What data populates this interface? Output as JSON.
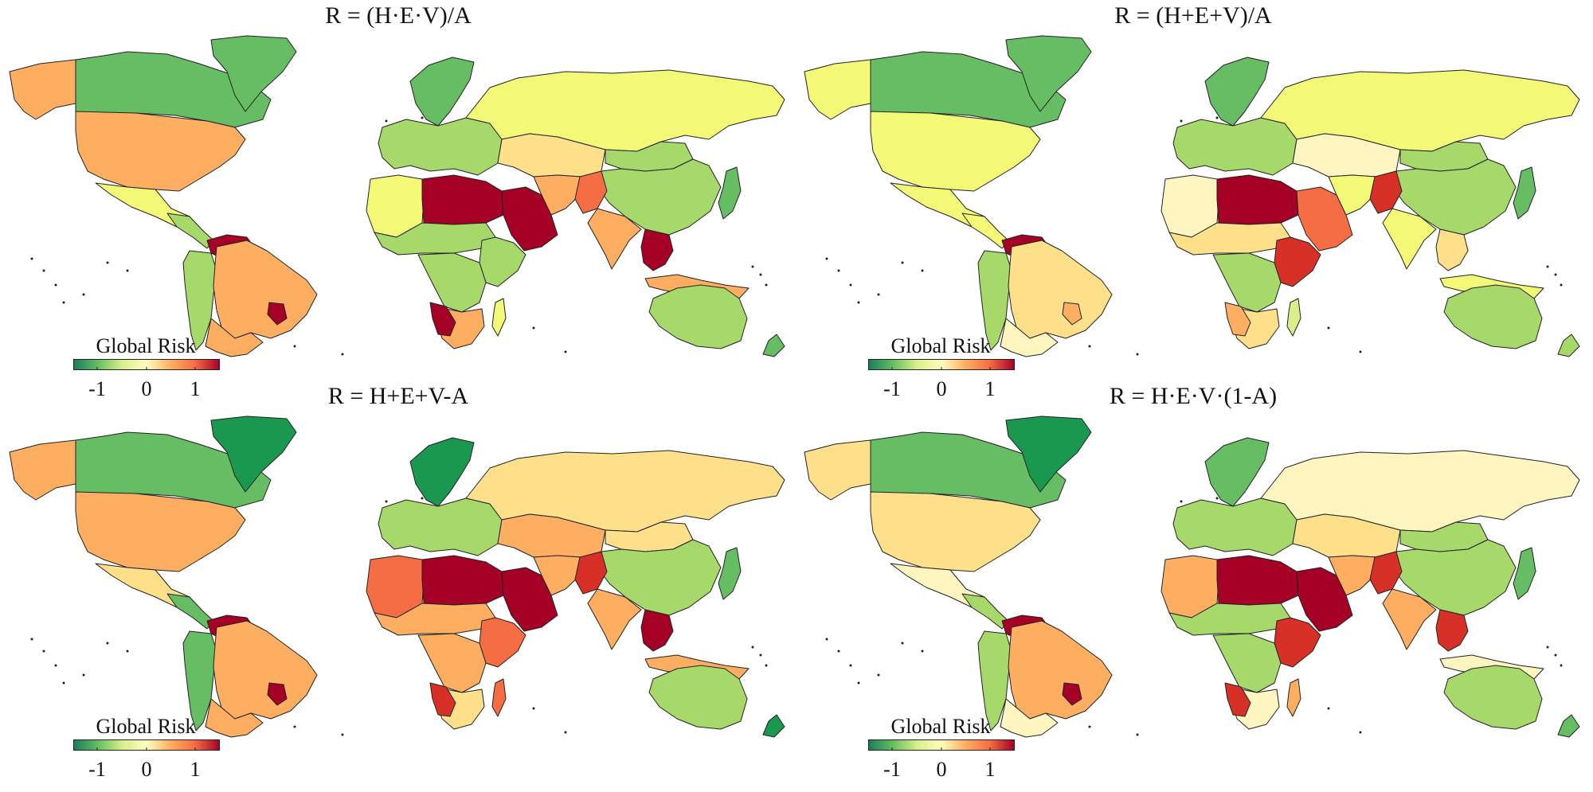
{
  "colors": {
    "dark_green": "#1a9850",
    "green": "#66bd63",
    "light_green": "#a6d96a",
    "yellow_green": "#d9ef8b",
    "yellow": "#f4f877",
    "cream": "#fee08b",
    "pale": "#fff5c0",
    "orange": "#fdae61",
    "dark_orange": "#f46d43",
    "red": "#d73027",
    "dark_red": "#a50026",
    "border": "#222222"
  },
  "colorbar": {
    "stops": [
      "#1a7d5a",
      "#66bd63",
      "#d9ef8b",
      "#fffcc0",
      "#fdae61",
      "#f46d43",
      "#a50026"
    ]
  },
  "panels": [
    {
      "title": "R = (H·E·V)/A",
      "legend_title": "Global Risk",
      "ticks": [
        "-1",
        "0",
        "1"
      ],
      "regions": {
        "canada": "green",
        "greenland": "green",
        "usa": "orange",
        "alaska": "orange",
        "mexico": "yellow",
        "central_america": "light_green",
        "venezuela": "dark_red",
        "south_america": "orange",
        "andes": "light_green",
        "argentina": "orange",
        "paraguay": "dark_red",
        "europe": "light_green",
        "scandinavia": "green",
        "russia": "yellow",
        "north_africa": "yellow",
        "libya_egypt": "dark_red",
        "sahel": "light_green",
        "east_africa": "light_green",
        "central_africa": "light_green",
        "southern_africa": "orange",
        "namibia": "dark_red",
        "madagascar": "yellow",
        "arabia": "dark_red",
        "iran": "orange",
        "central_asia": "cream",
        "india": "orange",
        "pakistan": "dark_orange",
        "china": "light_green",
        "mongolia": "light_green",
        "southeast_asia": "dark_red",
        "indonesia": "orange",
        "japan": "green",
        "australia": "light_green",
        "new_zealand": "green"
      }
    },
    {
      "title": "R = (H+E+V)/A",
      "legend_title": "Global Risk",
      "ticks": [
        "-1",
        "0",
        "1"
      ],
      "regions": {
        "canada": "green",
        "greenland": "green",
        "usa": "yellow",
        "alaska": "yellow",
        "mexico": "yellow",
        "central_america": "yellow",
        "venezuela": "dark_red",
        "south_america": "cream",
        "andes": "light_green",
        "argentina": "pale",
        "paraguay": "orange",
        "europe": "light_green",
        "scandinavia": "green",
        "russia": "yellow",
        "north_africa": "pale",
        "libya_egypt": "dark_red",
        "sahel": "cream",
        "east_africa": "red",
        "central_africa": "light_green",
        "southern_africa": "cream",
        "namibia": "orange",
        "madagascar": "yellow_green",
        "arabia": "dark_orange",
        "iran": "yellow",
        "central_asia": "pale",
        "india": "yellow",
        "pakistan": "red",
        "china": "light_green",
        "mongolia": "light_green",
        "southeast_asia": "cream",
        "indonesia": "yellow",
        "japan": "green",
        "australia": "light_green",
        "new_zealand": "light_green"
      }
    },
    {
      "title": "R = H+E+V-A",
      "legend_title": "Global Risk",
      "ticks": [
        "-1",
        "0",
        "1"
      ],
      "regions": {
        "canada": "green",
        "greenland": "dark_green",
        "usa": "orange",
        "alaska": "orange",
        "mexico": "cream",
        "central_america": "green",
        "venezuela": "dark_red",
        "south_america": "orange",
        "andes": "green",
        "argentina": "orange",
        "paraguay": "dark_red",
        "europe": "light_green",
        "scandinavia": "dark_green",
        "russia": "cream",
        "north_africa": "dark_orange",
        "libya_egypt": "dark_red",
        "sahel": "orange",
        "east_africa": "dark_orange",
        "central_africa": "orange",
        "southern_africa": "cream",
        "namibia": "red",
        "madagascar": "dark_orange",
        "arabia": "dark_red",
        "iran": "orange",
        "central_asia": "orange",
        "india": "orange",
        "pakistan": "red",
        "china": "light_green",
        "mongolia": "cream",
        "southeast_asia": "dark_red",
        "indonesia": "orange",
        "japan": "green",
        "australia": "light_green",
        "new_zealand": "dark_green"
      }
    },
    {
      "title": "R = H·E·V·(1-A)",
      "legend_title": "Global Risk",
      "ticks": [
        "-1",
        "0",
        "1"
      ],
      "regions": {
        "canada": "green",
        "greenland": "dark_green",
        "usa": "cream",
        "alaska": "cream",
        "mexico": "pale",
        "central_america": "light_green",
        "venezuela": "dark_red",
        "south_america": "orange",
        "andes": "light_green",
        "argentina": "pale",
        "paraguay": "dark_red",
        "europe": "light_green",
        "scandinavia": "green",
        "russia": "pale",
        "north_africa": "orange",
        "libya_egypt": "dark_red",
        "sahel": "light_green",
        "east_africa": "red",
        "central_africa": "light_green",
        "southern_africa": "pale",
        "namibia": "red",
        "madagascar": "orange",
        "arabia": "dark_red",
        "iran": "orange",
        "central_asia": "cream",
        "india": "orange",
        "pakistan": "red",
        "china": "light_green",
        "mongolia": "light_green",
        "southeast_asia": "red",
        "indonesia": "pale",
        "japan": "green",
        "australia": "light_green",
        "new_zealand": "green"
      }
    }
  ]
}
